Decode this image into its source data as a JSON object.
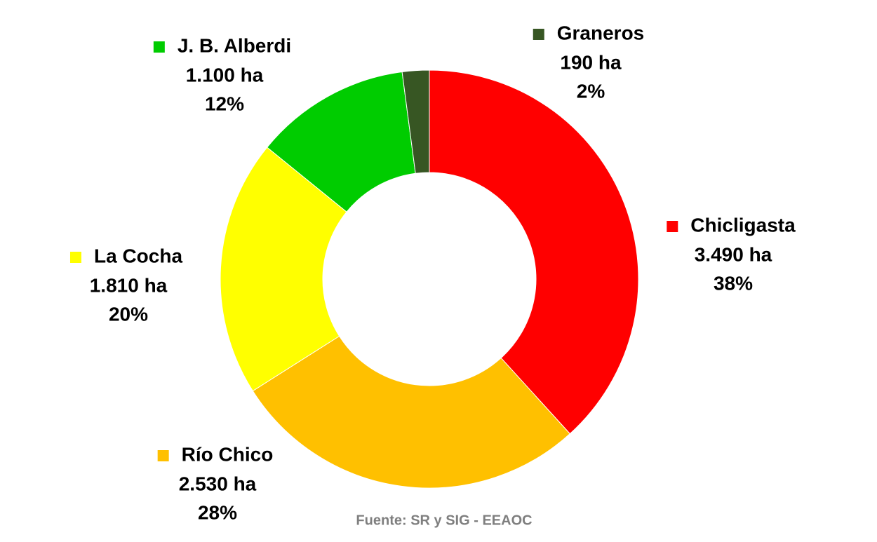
{
  "chart_data": {
    "type": "donut",
    "categories": [
      "Chicligasta",
      "Río Chico",
      "La Cocha",
      "J. B. Alberdi",
      "Graneros"
    ],
    "values": [
      3490,
      2530,
      1810,
      1100,
      190
    ],
    "value_labels": [
      "3.490 ha",
      "2.530 ha",
      "1.810 ha",
      "1.100 ha",
      "190 ha"
    ],
    "percentages": [
      38,
      28,
      20,
      12,
      2
    ],
    "percentage_labels": [
      "38%",
      "28%",
      "20%",
      "12%",
      "2%"
    ],
    "colors": [
      "#ff0000",
      "#ffc000",
      "#ffff00",
      "#00cc00",
      "#375623"
    ],
    "source": "Fuente: SR y SIG - EEAOC"
  }
}
